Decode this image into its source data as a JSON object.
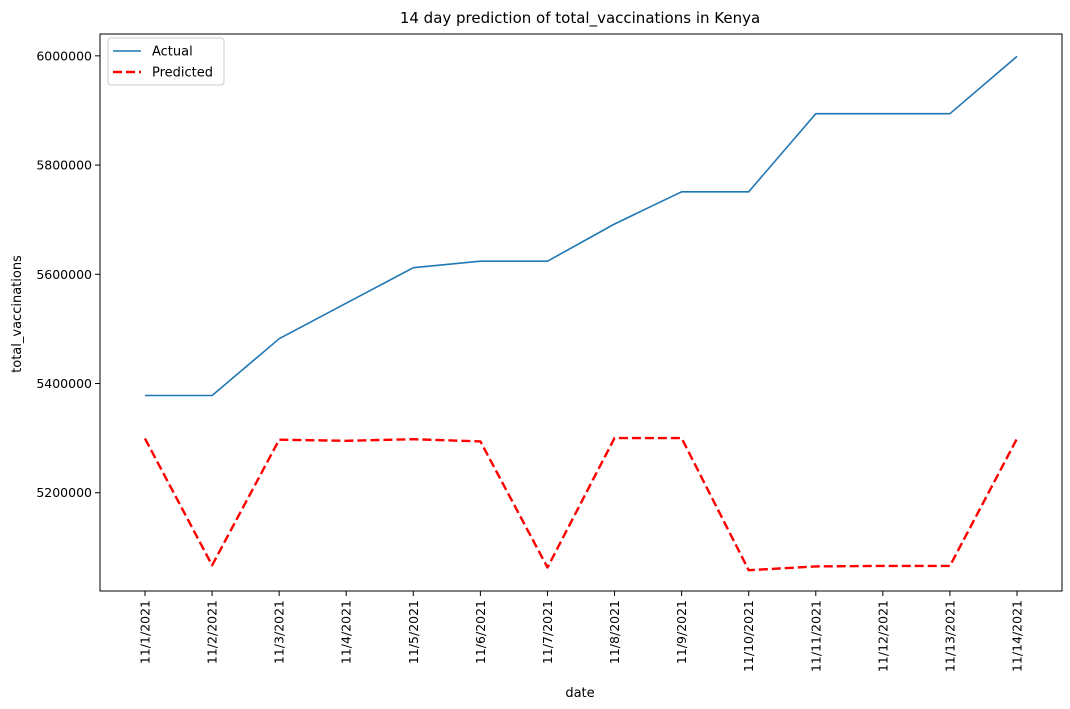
{
  "chart_data": {
    "type": "line",
    "title": "14 day prediction of total_vaccinations in Kenya",
    "xlabel": "date",
    "ylabel": "total_vaccinations",
    "categories": [
      "11/1/2021",
      "11/2/2021",
      "11/3/2021",
      "11/4/2021",
      "11/5/2021",
      "11/6/2021",
      "11/7/2021",
      "11/8/2021",
      "11/9/2021",
      "11/10/2021",
      "11/11/2021",
      "11/12/2021",
      "11/13/2021",
      "11/14/2021"
    ],
    "ylim": [
      5020000,
      6040000
    ],
    "yticks": [
      5200000,
      5400000,
      5600000,
      5800000,
      6000000
    ],
    "ytick_labels": [
      "5200000",
      "5400000",
      "5600000",
      "5800000",
      "6000000"
    ],
    "legend_position": "top-left",
    "grid": false,
    "series": [
      {
        "name": "Actual",
        "color": "#1f77b4",
        "style": "solid",
        "values": [
          5378000,
          5378000,
          5482000,
          5547000,
          5612000,
          5624000,
          5624000,
          5692000,
          5751000,
          5751000,
          5894000,
          5894000,
          5894000,
          5999000
        ]
      },
      {
        "name": "Predicted",
        "color": "#ff0000",
        "style": "dashed",
        "values": [
          5299000,
          5067000,
          5297000,
          5295000,
          5298000,
          5294000,
          5063000,
          5300000,
          5300000,
          5058000,
          5065000,
          5066000,
          5066000,
          5299000
        ]
      }
    ]
  }
}
